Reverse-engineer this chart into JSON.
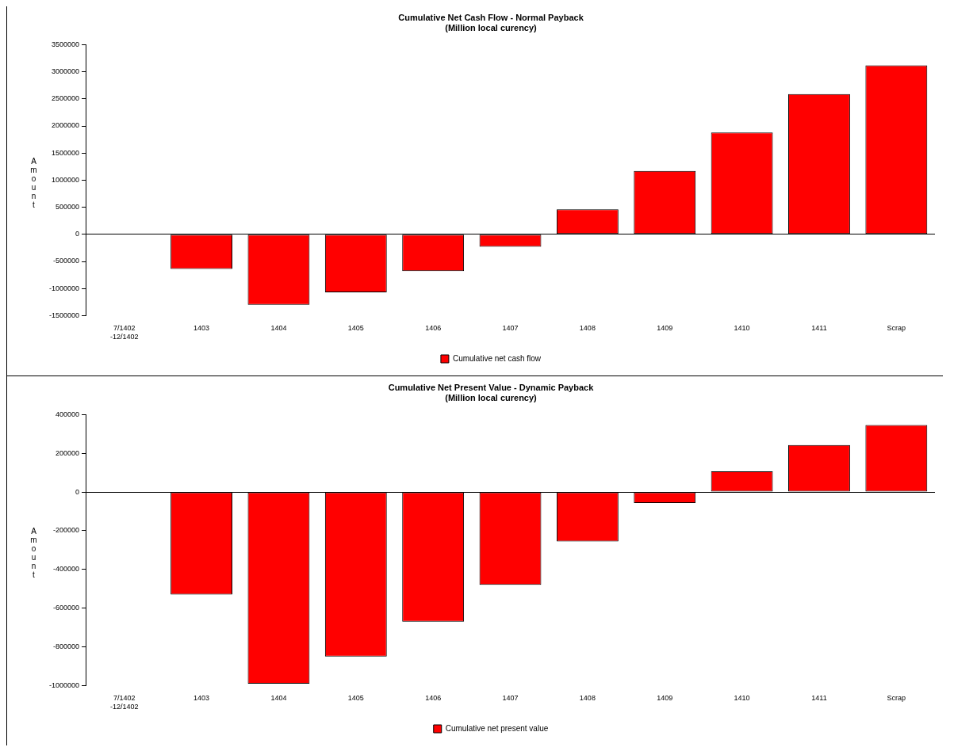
{
  "chart_data": [
    {
      "type": "bar",
      "title": "Cumulative Net Cash Flow - Normal Payback",
      "subtitle": "(Million local curency)",
      "ylabel": "Amount",
      "categories": [
        "7/1402\n-12/1402",
        "1403",
        "1404",
        "1405",
        "1406",
        "1407",
        "1408",
        "1409",
        "1410",
        "1411",
        "Scrap"
      ],
      "series": [
        {
          "name": "Cumulative net cash flow",
          "color": "#ff0000",
          "values": [
            0,
            -640000,
            -1300000,
            -1070000,
            -680000,
            -230000,
            460000,
            1170000,
            1880000,
            2590000,
            3120000
          ]
        }
      ],
      "ylim": [
        -1500000,
        3500000
      ],
      "yticks": [
        -1500000,
        -1000000,
        -500000,
        0,
        500000,
        1000000,
        1500000,
        2000000,
        2500000,
        3000000,
        3500000
      ],
      "legend": "bottom"
    },
    {
      "type": "bar",
      "title": "Cumulative Net Present Value - Dynamic Payback",
      "subtitle": "(Million local curency)",
      "ylabel": "Amount",
      "categories": [
        "7/1402\n-12/1402",
        "1403",
        "1404",
        "1405",
        "1406",
        "1407",
        "1408",
        "1409",
        "1410",
        "1411",
        "Scrap"
      ],
      "series": [
        {
          "name": "Cumulative net present value",
          "color": "#ff0000",
          "values": [
            0,
            -530000,
            -990000,
            -850000,
            -670000,
            -480000,
            -255000,
            -57000,
            107000,
            243000,
            346000
          ]
        }
      ],
      "ylim": [
        -1000000,
        400000
      ],
      "yticks": [
        -1000000,
        -800000,
        -600000,
        -400000,
        -200000,
        0,
        200000,
        400000
      ],
      "legend": "bottom"
    }
  ]
}
